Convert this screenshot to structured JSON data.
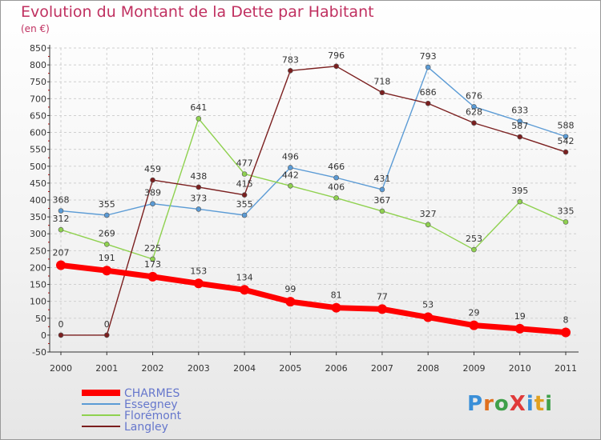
{
  "title": "Evolution du Montant de la Dette par Habitant",
  "subtitle": "(en €)",
  "logo": {
    "text": "ProXiti",
    "letter_colors": [
      "#3a8fd8",
      "#e0701e",
      "#3fa04a",
      "#e03a3a",
      "#3a8fd8",
      "#e0a020",
      "#3fa04a"
    ]
  },
  "chart_data": {
    "type": "line",
    "title": "Evolution du Montant de la Dette par Habitant",
    "subtitle": "(en €)",
    "xlabel": "",
    "ylabel": "",
    "x": [
      "2000",
      "2001",
      "2002",
      "2003",
      "2004",
      "2005",
      "2006",
      "2007",
      "2008",
      "2009",
      "2010",
      "2011"
    ],
    "ylim": [
      -50,
      850
    ],
    "yticks": [
      -50,
      0,
      50,
      100,
      150,
      200,
      250,
      300,
      350,
      400,
      450,
      500,
      550,
      600,
      650,
      700,
      750,
      800,
      850
    ],
    "grid": true,
    "legend": "bottom-left",
    "series": [
      {
        "name": "Essegney",
        "color": "#5b9bd5",
        "values": [
          368,
          355,
          389,
          373,
          355,
          496,
          466,
          431,
          793,
          676,
          633,
          588
        ]
      },
      {
        "name": "Florémont",
        "color": "#8fd14f",
        "values": [
          312,
          269,
          225,
          641,
          477,
          442,
          406,
          367,
          327,
          253,
          395,
          335
        ]
      },
      {
        "name": "Langley",
        "color": "#7b1f1f",
        "values": [
          0,
          0,
          459,
          438,
          415,
          783,
          796,
          718,
          686,
          628,
          587,
          542
        ]
      },
      {
        "name": "CHARMES",
        "color": "#ff0000",
        "values": [
          207,
          191,
          173,
          153,
          134,
          99,
          81,
          77,
          53,
          29,
          19,
          8
        ]
      }
    ],
    "legend_order": [
      "CHARMES",
      "Essegney",
      "Florémont",
      "Langley"
    ]
  }
}
